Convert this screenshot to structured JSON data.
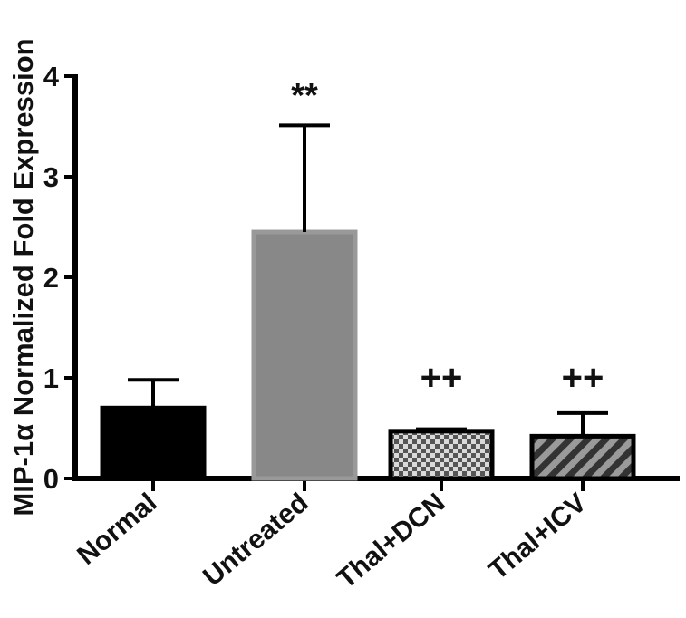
{
  "chart_data": {
    "type": "bar",
    "title": "",
    "ylabel": "MIP-1α Normalized Fold Expression",
    "xlabel": "",
    "ylim": [
      0,
      4
    ],
    "yticks": [
      "0",
      "1",
      "2",
      "3",
      "4"
    ],
    "categories": [
      "Normal",
      "Untreated",
      "Thal+DCN",
      "Thal+ICV"
    ],
    "values": [
      0.7,
      2.45,
      0.47,
      0.42
    ],
    "errors": [
      0.28,
      1.06,
      0.02,
      0.23
    ],
    "annotations": [
      "",
      "**",
      "++",
      "++"
    ],
    "fills": [
      "solid",
      "solid",
      "checker",
      "hatch"
    ],
    "colors": [
      "#000000",
      "#888888",
      "#7a7a7a",
      "#444444"
    ],
    "grid": false,
    "legend": "none"
  }
}
